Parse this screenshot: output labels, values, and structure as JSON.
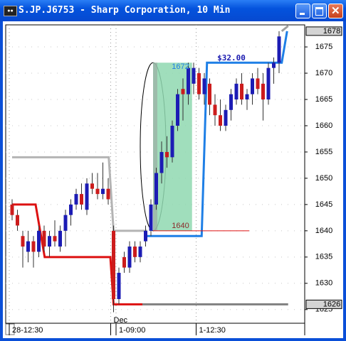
{
  "window": {
    "title": "S.JP.J6753 - Sharp Corporation, 10 Min"
  },
  "chart_data": {
    "type": "candlestick",
    "up_color": "#1c1cb4",
    "down_color": "#cc1c1c",
    "categories": [
      "28-12:30",
      null,
      null,
      null,
      null,
      null,
      null,
      null,
      null,
      null,
      null,
      null,
      null,
      null,
      null,
      null,
      null,
      null,
      null,
      "Dec",
      "1-09:00",
      null,
      null,
      null,
      null,
      null,
      null,
      null,
      null,
      null,
      null,
      null,
      null,
      null,
      null,
      "1-12:30",
      null,
      null,
      null,
      null,
      null,
      null,
      null,
      null,
      null,
      null,
      null,
      null,
      null,
      null,
      null
    ],
    "open": [
      1645,
      1643,
      1639,
      1636,
      1638,
      1636,
      1640,
      1637,
      1639,
      1637,
      1640,
      1643,
      1645,
      1647,
      1644,
      1649,
      1648,
      1647,
      1648,
      1640,
      1627,
      1635,
      1633,
      1637,
      1635,
      1638,
      1640,
      1645,
      1651,
      1655,
      1654,
      1660,
      1667,
      1666,
      1668,
      1670,
      1666,
      1668,
      1664,
      1662,
      1660,
      1663,
      1665,
      1668,
      1665,
      1666,
      1669,
      1668,
      1665,
      1671,
      1672
    ],
    "high": [
      1646,
      1644,
      1640,
      1640,
      1639,
      1641,
      1641,
      1640,
      1642,
      1641,
      1644,
      1646,
      1648,
      1649,
      1650,
      1651,
      1651,
      1653,
      1650,
      1641,
      1633,
      1636,
      1638,
      1638,
      1638,
      1641,
      1646,
      1652,
      1657,
      1658,
      1661,
      1667,
      1669,
      1672,
      1672,
      1671,
      1670,
      1669,
      1666,
      1665,
      1664,
      1667,
      1669,
      1670,
      1667,
      1670,
      1671,
      1670,
      1672,
      1673,
      1678
    ],
    "low": [
      1642,
      1640,
      1633,
      1634,
      1633,
      1635,
      1636,
      1635,
      1637,
      1636,
      1637,
      1641,
      1644,
      1644,
      1643,
      1647,
      1646,
      1646,
      1645,
      1624.5,
      1626,
      1632,
      1632,
      1634,
      1634,
      1637,
      1639,
      1644,
      1649,
      1652,
      1653,
      1659,
      1661,
      1664,
      1666,
      1665,
      1664,
      1662,
      1660,
      1659,
      1659,
      1661,
      1664,
      1664,
      1663,
      1664,
      1666,
      1661,
      1664,
      1668,
      1670
    ],
    "close": [
      1643,
      1641,
      1637,
      1638,
      1636,
      1640,
      1637,
      1639,
      1638,
      1640,
      1643,
      1645,
      1647,
      1645,
      1649,
      1648,
      1647,
      1648,
      1646,
      1627,
      1632,
      1633,
      1637,
      1635,
      1637,
      1640,
      1645,
      1651,
      1655,
      1654,
      1660,
      1666,
      1666,
      1671,
      1671,
      1666,
      1669,
      1664,
      1662,
      1660,
      1663,
      1666,
      1668,
      1665,
      1666,
      1669,
      1667,
      1665,
      1671,
      1672,
      1677
    ],
    "overlays": [
      {
        "color": "#dd1111",
        "x": [
          0,
          4.4,
          6.1,
          18.4,
          19,
          24.4
        ],
        "values": [
          1645,
          1645,
          1635,
          1635,
          1626,
          1626
        ]
      },
      {
        "color": "#b4b4b4",
        "x": [
          0,
          18.1,
          19,
          25.3
        ],
        "values": [
          1654,
          1654,
          1640,
          1640
        ]
      },
      {
        "color": "#808080",
        "x": [
          24.4,
          51.7
        ],
        "values": [
          1626,
          1626
        ]
      },
      {
        "color": "#1e7fe6",
        "x": [
          25.3,
          35.5,
          36.5,
          50.5,
          51.5
        ],
        "values": [
          1639,
          1639,
          1672,
          1672,
          1678
        ]
      },
      {
        "color": "#a0a0a0",
        "x": [
          50.5,
          51.7
        ],
        "values": [
          1678,
          1679
        ]
      },
      {
        "color": "#dd1111",
        "x": [
          26.4,
          44.4
        ],
        "values": [
          1640,
          1640
        ]
      }
    ],
    "box_high": 1672,
    "box_low": 1640,
    "range_label": "$32.00",
    "price_markers": [
      1678,
      1626
    ],
    "ylim": [
      1622.4,
      1679.2
    ],
    "yticks": [
      1625,
      1630,
      1635,
      1640,
      1645,
      1650,
      1655,
      1660,
      1665,
      1670,
      1675
    ],
    "grid": true
  }
}
